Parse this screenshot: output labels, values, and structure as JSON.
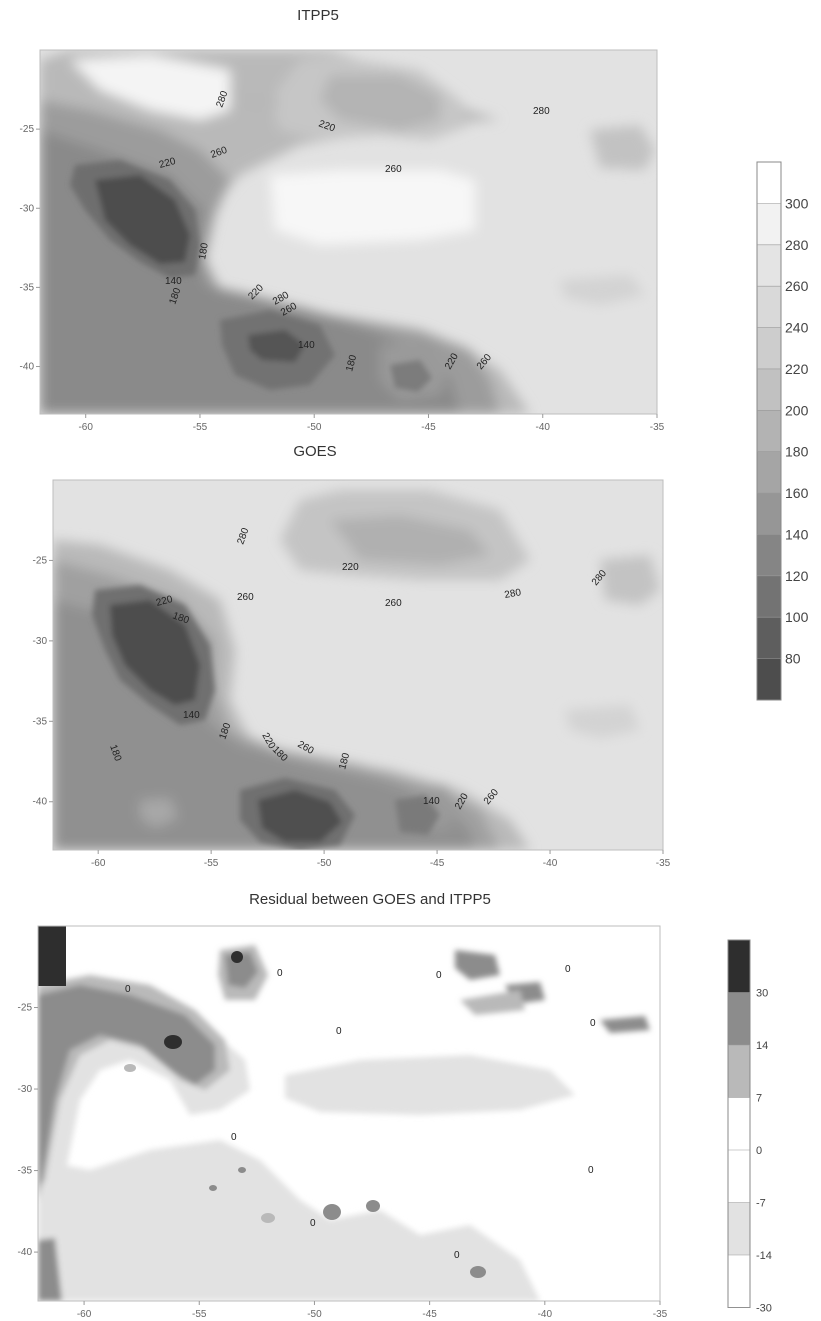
{
  "chart_data": [
    {
      "type": "heatmap",
      "subtype": "filled-contour map",
      "title": "ITPP5",
      "xlim": [
        -62,
        -35
      ],
      "ylim": [
        -43,
        -20
      ],
      "x_ticks": [
        "-60",
        "-55",
        "-50",
        "-45",
        "-40",
        "-35"
      ],
      "y_ticks": [
        "-25",
        "-30",
        "-35",
        "-40"
      ],
      "contour_labels": [
        "280",
        "220",
        "280",
        "260",
        "220",
        "260",
        "180",
        "140",
        "180",
        "220",
        "260",
        "140",
        "180",
        "220",
        "260",
        "280"
      ],
      "features": [
        {
          "name": "low minimum (west)",
          "lon": -56.5,
          "lat": -30.5,
          "value": 100
        },
        {
          "name": "low minimum (centre)",
          "lon": -50.5,
          "lat": -38.5,
          "value": 120
        },
        {
          "name": "low minimum (east)",
          "lon": -45.5,
          "lat": -40.0,
          "value": 180
        },
        {
          "name": "high maximum",
          "lon": -46.0,
          "lat": -30.5,
          "value": 300
        }
      ]
    },
    {
      "type": "heatmap",
      "subtype": "filled-contour map",
      "title": "GOES",
      "xlim": [
        -62,
        -35
      ],
      "ylim": [
        -43,
        -20
      ],
      "x_ticks": [
        "-60",
        "-55",
        "-50",
        "-45",
        "-40",
        "-35"
      ],
      "y_ticks": [
        "-25",
        "-30",
        "-35",
        "-40"
      ],
      "contour_labels": [
        "280",
        "220",
        "260",
        "220",
        "180",
        "260",
        "280",
        "140",
        "180",
        "180",
        "220",
        "180",
        "260",
        "180",
        "140",
        "220",
        "260",
        "280"
      ],
      "features": [
        {
          "name": "low minimum (west)",
          "lon": -56.5,
          "lat": -31.0,
          "value": 100
        },
        {
          "name": "low minimum (centre)",
          "lon": -50.5,
          "lat": -38.5,
          "value": 100
        },
        {
          "name": "low minimum (east)",
          "lon": -45.0,
          "lat": -40.5,
          "value": 160
        }
      ]
    },
    {
      "type": "heatmap",
      "subtype": "filled-contour map",
      "title": "Residual between GOES and ITPP5",
      "xlim": [
        -62,
        -35
      ],
      "ylim": [
        -43,
        -20
      ],
      "x_ticks": [
        "-60",
        "-55",
        "-50",
        "-45",
        "-40",
        "-35"
      ],
      "y_ticks": [
        "-25",
        "-30",
        "-35",
        "-40"
      ],
      "contour_labels": [
        "0",
        "0",
        "0",
        "0",
        "0",
        "0",
        "0",
        "0",
        "0",
        "0"
      ],
      "features": [
        {
          "name": "large positive residual",
          "lon": -56,
          "lat": -27.5,
          "value": 30
        },
        {
          "name": "positive residual band",
          "lon": -58,
          "lat": -28,
          "value": 14
        }
      ]
    }
  ],
  "colorbar_main": {
    "ticks": [
      "300",
      "280",
      "260",
      "240",
      "220",
      "200",
      "180",
      "160",
      "140",
      "120",
      "100",
      "80"
    ],
    "colors": [
      "#ffffff",
      "#f2f2f2",
      "#e4e4e4",
      "#d9d9d9",
      "#cdcdcd",
      "#c1c1c1",
      "#b3b3b3",
      "#a5a5a5",
      "#969696",
      "#858585",
      "#737373",
      "#5e5e5e",
      "#4d4d4d"
    ]
  },
  "colorbar_residual": {
    "ticks": [
      "30",
      "14",
      "7",
      "0",
      "-7",
      "-14",
      "-30"
    ],
    "colors": [
      "#2e2e2e",
      "#8c8c8c",
      "#b9b9b9",
      "#ffffff",
      "#ffffff",
      "#e2e2e2",
      "#ffffff"
    ]
  }
}
